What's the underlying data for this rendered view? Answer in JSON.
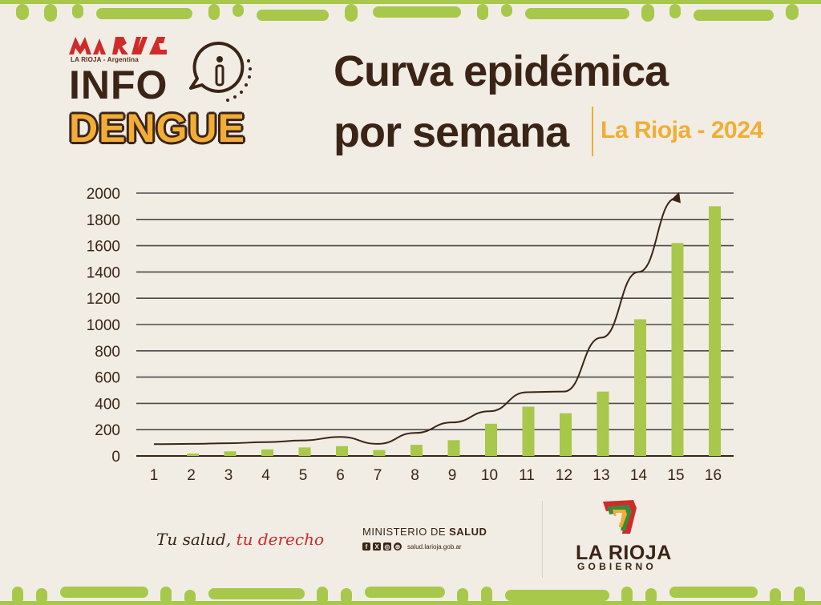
{
  "colors": {
    "background": "#f1ede4",
    "brown": "#3b2416",
    "orange": "#f1ad35",
    "bar_green": "#a7c84a",
    "red": "#d02a2a"
  },
  "header": {
    "brand_sub": "LA RIOJA - Argentina",
    "info_word": "INFO",
    "dengue_word": "DENGUE",
    "title_line1": "Curva epidémica",
    "title_line2": "por semana",
    "subtitle": "La Rioja - 2024"
  },
  "chart_data": {
    "type": "bar",
    "categories": [
      "1",
      "2",
      "3",
      "4",
      "5",
      "6",
      "7",
      "8",
      "9",
      "10",
      "11",
      "12",
      "13",
      "14",
      "15",
      "16"
    ],
    "values": [
      0,
      18,
      35,
      50,
      65,
      75,
      45,
      85,
      120,
      245,
      375,
      325,
      490,
      1040,
      1620,
      1900
    ],
    "trend_line": [
      90,
      92,
      97,
      105,
      118,
      145,
      92,
      175,
      255,
      340,
      485,
      490,
      900,
      1400,
      1960
    ],
    "y_ticks": [
      "0",
      "200",
      "400",
      "600",
      "800",
      "1000",
      "1200",
      "1400",
      "1600",
      "1800",
      "2000"
    ],
    "ylim": [
      0,
      2000
    ],
    "grid": true,
    "legend": "none"
  },
  "footer": {
    "slogan_part1": "Tu salud, ",
    "slogan_part2": "tu derecho",
    "ministry_prefix": "MINISTERIO DE ",
    "ministry_bold": "SALUD",
    "website": "salud.larioja.gob.ar",
    "gov_name": "LA RIOJA",
    "gov_sub": "GOBIERNO"
  }
}
